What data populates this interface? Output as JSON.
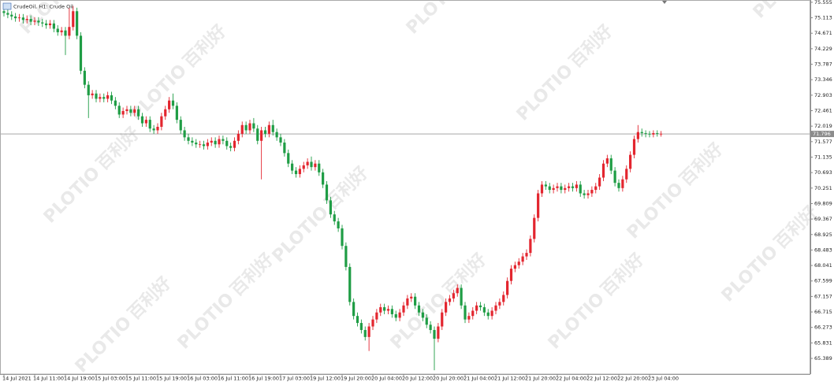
{
  "chart_data": {
    "type": "candlestick",
    "title": "CrudeOil, H1:  Crude Oil",
    "watermark": [
      "PLOTIO",
      "百利好"
    ],
    "up_color": "#e3262f",
    "down_color": "#1f9d45",
    "last_price": 71.796,
    "last_price_label": "71.796",
    "ylim": [
      64.94,
      75.62
    ],
    "yticks": [
      75.555,
      75.113,
      74.671,
      74.229,
      73.787,
      73.346,
      72.903,
      72.461,
      72.019,
      71.577,
      71.135,
      70.693,
      70.251,
      69.809,
      69.367,
      68.925,
      68.483,
      68.041,
      67.599,
      67.157,
      66.715,
      66.273,
      65.831,
      65.389
    ],
    "categories": [
      "14 Jul 2021",
      null,
      null,
      null,
      null,
      null,
      null,
      null,
      "14 Jul 11:00",
      null,
      null,
      null,
      null,
      null,
      null,
      null,
      "14 Jul 19:00",
      null,
      null,
      null,
      null,
      null,
      null,
      null,
      "15 Jul 03:00",
      null,
      null,
      null,
      null,
      null,
      null,
      null,
      "15 Jul 11:00",
      null,
      null,
      null,
      null,
      null,
      null,
      null,
      "15 Jul 19:00",
      null,
      null,
      null,
      null,
      null,
      null,
      null,
      "16 Jul 03:00",
      null,
      null,
      null,
      null,
      null,
      null,
      null,
      "16 Jul 11:00",
      null,
      null,
      null,
      null,
      null,
      null,
      null,
      "16 Jul 19:00",
      null,
      null,
      null,
      null,
      null,
      null,
      null,
      "17 Jul 03:00",
      null,
      null,
      null,
      null,
      null,
      null,
      null,
      "19 Jul 12:00",
      null,
      null,
      null,
      null,
      null,
      null,
      null,
      "19 Jul 20:00",
      null,
      null,
      null,
      null,
      null,
      null,
      null,
      "20 Jul 04:00",
      null,
      null,
      null,
      null,
      null,
      null,
      null,
      "20 Jul 12:00",
      null,
      null,
      null,
      null,
      null,
      null,
      null,
      "20 Jul 20:00",
      null,
      null,
      null,
      null,
      null,
      null,
      null,
      "21 Jul 04:00",
      null,
      null,
      null,
      null,
      null,
      null,
      null,
      "21 Jul 12:00",
      null,
      null,
      null,
      null,
      null,
      null,
      null,
      "21 Jul 20:00",
      null,
      null,
      null,
      null,
      null,
      null,
      null,
      "22 Jul 04:00",
      null,
      null,
      null,
      null,
      null,
      null,
      null,
      "22 Jul 12:00",
      null,
      null,
      null,
      null,
      null,
      null,
      null,
      "22 Jul 20:00",
      null,
      null,
      null,
      null,
      null,
      null,
      null,
      "23 Jul 04:00",
      null,
      null,
      null
    ],
    "open": [
      75.3,
      75.25,
      75.2,
      75.15,
      75.1,
      75.12,
      75.05,
      75.08,
      75.0,
      75.03,
      74.98,
      74.95,
      74.9,
      74.95,
      74.8,
      74.7,
      74.75,
      74.6,
      74.85,
      75.3,
      74.6,
      73.6,
      73.2,
      72.9,
      72.95,
      72.8,
      72.85,
      72.8,
      72.9,
      72.75,
      72.6,
      72.35,
      72.45,
      72.5,
      72.4,
      72.5,
      72.3,
      72.1,
      72.2,
      71.95,
      71.9,
      72.0,
      72.3,
      72.5,
      72.75,
      72.6,
      72.2,
      71.9,
      71.7,
      71.6,
      71.55,
      71.5,
      71.5,
      71.45,
      71.55,
      71.6,
      71.5,
      71.65,
      71.6,
      71.45,
      71.4,
      71.6,
      71.8,
      72.05,
      71.9,
      72.1,
      71.95,
      71.6,
      71.9,
      71.8,
      72.05,
      71.85,
      71.7,
      71.55,
      71.25,
      70.95,
      70.75,
      70.65,
      70.8,
      70.9,
      71.0,
      70.85,
      70.95,
      70.7,
      70.35,
      69.9,
      69.5,
      69.3,
      69.1,
      68.6,
      68.0,
      67.0,
      66.6,
      66.4,
      66.2,
      66.0,
      66.3,
      66.5,
      66.7,
      66.85,
      66.75,
      66.8,
      66.65,
      66.55,
      66.7,
      66.9,
      67.1,
      67.15,
      66.9,
      66.7,
      66.55,
      66.35,
      66.2,
      65.95,
      66.3,
      66.7,
      67.0,
      67.1,
      67.25,
      67.4,
      66.9,
      66.5,
      66.6,
      66.75,
      66.9,
      66.85,
      66.7,
      66.6,
      66.75,
      66.9,
      67.0,
      67.2,
      67.6,
      67.95,
      68.05,
      68.15,
      68.3,
      68.4,
      68.8,
      69.4,
      70.1,
      70.35,
      70.3,
      70.2,
      70.25,
      70.3,
      70.2,
      70.25,
      70.3,
      70.25,
      70.35,
      70.1,
      70.05,
      70.1,
      70.2,
      70.3,
      70.55,
      70.95,
      71.1,
      70.75,
      70.4,
      70.25,
      70.5,
      70.8,
      71.2,
      71.65,
      71.85,
      71.82,
      71.8,
      71.78,
      71.82,
      71.8
    ],
    "high": [
      75.4,
      75.35,
      75.3,
      75.25,
      75.22,
      75.22,
      75.18,
      75.18,
      75.13,
      75.13,
      75.08,
      75.05,
      75.05,
      75.05,
      74.9,
      74.85,
      74.85,
      75.4,
      75.45,
      75.4,
      74.7,
      73.7,
      73.3,
      73.05,
      73.05,
      72.95,
      72.95,
      73.0,
      73.0,
      72.85,
      72.7,
      72.55,
      72.6,
      72.6,
      72.6,
      72.6,
      72.4,
      72.3,
      72.3,
      72.05,
      72.1,
      72.4,
      72.6,
      72.85,
      72.95,
      72.7,
      72.3,
      72.0,
      71.8,
      71.7,
      71.65,
      71.6,
      71.6,
      71.65,
      71.7,
      71.7,
      71.75,
      71.75,
      71.7,
      71.55,
      71.7,
      71.9,
      72.15,
      72.15,
      72.2,
      72.25,
      72.05,
      72.0,
      72.0,
      72.15,
      72.2,
      71.95,
      71.8,
      71.65,
      71.35,
      71.05,
      70.85,
      70.9,
      71.0,
      71.1,
      71.15,
      71.05,
      71.05,
      70.8,
      70.45,
      70.0,
      69.6,
      69.4,
      69.2,
      68.7,
      68.1,
      67.1,
      66.7,
      66.5,
      66.3,
      66.4,
      66.6,
      66.8,
      66.95,
      66.95,
      66.9,
      66.9,
      66.75,
      66.8,
      67.0,
      67.2,
      67.25,
      67.25,
      67.0,
      66.8,
      66.65,
      66.45,
      66.3,
      66.4,
      66.8,
      67.1,
      67.2,
      67.35,
      67.5,
      67.5,
      67.0,
      66.7,
      66.85,
      67.0,
      67.0,
      66.95,
      66.8,
      66.85,
      67.0,
      67.1,
      67.3,
      67.7,
      68.05,
      68.15,
      68.25,
      68.4,
      68.5,
      68.9,
      69.5,
      70.2,
      70.45,
      70.45,
      70.4,
      70.35,
      70.4,
      70.4,
      70.35,
      70.4,
      70.4,
      70.45,
      70.45,
      70.2,
      70.2,
      70.3,
      70.4,
      70.65,
      71.05,
      71.2,
      71.2,
      70.85,
      70.5,
      70.6,
      70.9,
      71.3,
      71.75,
      72.05,
      71.95,
      71.9,
      71.88,
      71.9,
      71.9,
      71.88
    ],
    "low": [
      75.15,
      75.1,
      75.05,
      75.0,
      75.0,
      74.95,
      74.95,
      74.9,
      74.9,
      74.88,
      74.85,
      74.8,
      74.8,
      74.7,
      74.6,
      74.6,
      74.05,
      74.5,
      74.75,
      74.5,
      73.5,
      73.1,
      72.25,
      72.8,
      72.7,
      72.7,
      72.7,
      72.7,
      72.65,
      72.5,
      72.25,
      72.25,
      72.35,
      72.3,
      72.3,
      72.2,
      72.0,
      72.0,
      71.85,
      71.8,
      71.8,
      71.9,
      72.2,
      72.4,
      72.5,
      72.1,
      71.8,
      71.6,
      71.5,
      71.45,
      71.4,
      71.4,
      71.35,
      71.35,
      71.45,
      71.4,
      71.4,
      71.5,
      71.35,
      71.3,
      71.3,
      71.5,
      71.7,
      71.8,
      71.8,
      71.85,
      71.5,
      70.5,
      71.7,
      71.7,
      71.75,
      71.6,
      71.45,
      71.15,
      70.85,
      70.65,
      70.55,
      70.55,
      70.7,
      70.8,
      70.75,
      70.75,
      70.6,
      70.25,
      69.8,
      69.4,
      69.2,
      69.0,
      68.5,
      67.9,
      66.9,
      66.5,
      66.3,
      66.1,
      65.9,
      65.6,
      66.2,
      66.4,
      66.6,
      66.65,
      66.65,
      66.55,
      66.45,
      66.45,
      66.6,
      66.8,
      67.0,
      66.8,
      66.6,
      66.45,
      66.25,
      66.1,
      65.05,
      65.85,
      66.2,
      66.6,
      66.9,
      67.0,
      67.15,
      66.8,
      66.4,
      66.4,
      66.5,
      66.65,
      66.75,
      66.6,
      66.5,
      66.5,
      66.65,
      66.8,
      66.9,
      67.1,
      67.5,
      67.85,
      67.95,
      68.05,
      68.2,
      68.3,
      68.7,
      69.3,
      70.0,
      70.2,
      70.1,
      70.1,
      70.15,
      70.1,
      70.1,
      70.15,
      70.15,
      70.15,
      70.0,
      69.95,
      69.95,
      70.0,
      70.1,
      70.2,
      70.45,
      70.85,
      70.65,
      70.3,
      70.15,
      70.15,
      70.4,
      70.7,
      71.1,
      71.55,
      71.72,
      71.7,
      71.7,
      71.7,
      71.72,
      71.72
    ],
    "close": [
      75.25,
      75.2,
      75.15,
      75.1,
      75.12,
      75.05,
      75.08,
      75.0,
      75.03,
      74.98,
      74.95,
      74.9,
      74.95,
      74.8,
      74.7,
      74.75,
      74.6,
      74.85,
      75.3,
      74.6,
      73.6,
      73.2,
      72.9,
      72.95,
      72.8,
      72.85,
      72.8,
      72.9,
      72.75,
      72.6,
      72.35,
      72.45,
      72.5,
      72.4,
      72.5,
      72.3,
      72.1,
      72.2,
      71.95,
      71.9,
      72.0,
      72.3,
      72.5,
      72.75,
      72.6,
      72.2,
      71.9,
      71.7,
      71.6,
      71.55,
      71.5,
      71.5,
      71.45,
      71.55,
      71.6,
      71.5,
      71.65,
      71.6,
      71.45,
      71.4,
      71.6,
      71.8,
      72.05,
      71.9,
      72.1,
      71.95,
      71.6,
      71.9,
      71.8,
      72.05,
      71.85,
      71.7,
      71.55,
      71.25,
      70.95,
      70.75,
      70.65,
      70.8,
      70.9,
      71.0,
      70.85,
      70.95,
      70.7,
      70.35,
      69.9,
      69.5,
      69.3,
      69.1,
      68.6,
      68.0,
      67.0,
      66.6,
      66.4,
      66.2,
      66.0,
      66.3,
      66.5,
      66.7,
      66.85,
      66.75,
      66.8,
      66.65,
      66.55,
      66.7,
      66.9,
      67.1,
      67.15,
      66.9,
      66.7,
      66.55,
      66.35,
      66.2,
      65.95,
      66.3,
      66.7,
      67.0,
      67.1,
      67.25,
      67.4,
      66.9,
      66.5,
      66.6,
      66.75,
      66.9,
      66.85,
      66.7,
      66.6,
      66.75,
      66.9,
      67.0,
      67.2,
      67.6,
      67.95,
      68.05,
      68.15,
      68.3,
      68.4,
      68.8,
      69.4,
      70.1,
      70.35,
      70.3,
      70.2,
      70.25,
      70.3,
      70.2,
      70.25,
      70.3,
      70.25,
      70.35,
      70.1,
      70.05,
      70.1,
      70.2,
      70.3,
      70.55,
      70.95,
      71.1,
      70.75,
      70.4,
      70.25,
      70.5,
      70.8,
      71.2,
      71.65,
      71.85,
      71.82,
      71.8,
      71.78,
      71.82,
      71.8,
      71.8
    ]
  }
}
